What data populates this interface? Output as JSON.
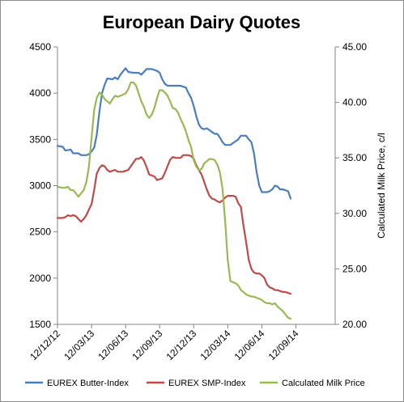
{
  "chart_data": {
    "type": "line",
    "title": "European Dairy Quotes",
    "xlabel": "",
    "ylabel": "",
    "y2label": "Calculated Milk Price, c/l",
    "x_tick_labels": [
      "12/12/12",
      "12/03/13",
      "12/06/13",
      "12/09/13",
      "12/12/13",
      "12/03/14",
      "12/06/14",
      "12/09/14"
    ],
    "x_range": [
      0,
      106
    ],
    "x_tick_positions": [
      0,
      13,
      26,
      39,
      52,
      65,
      78,
      91
    ],
    "ylim": [
      1500,
      4500
    ],
    "y_ticks": [
      1500,
      2000,
      2500,
      3000,
      3500,
      4000,
      4500
    ],
    "y_tick_labels": [
      "1500",
      "2000",
      "2500",
      "3000",
      "3500",
      "4000",
      "4500"
    ],
    "y2lim": [
      20,
      45
    ],
    "y2_ticks": [
      20,
      25,
      30,
      35,
      40,
      45
    ],
    "y2_tick_labels": [
      "20.00",
      "25.00",
      "30.00",
      "35.00",
      "40.00",
      "45.00"
    ],
    "grid": false,
    "legend_position": "bottom",
    "series": [
      {
        "name": "EUREX Butter-Index",
        "axis": "left",
        "color": "#4a7ebb",
        "points": [
          [
            0,
            3430
          ],
          [
            2,
            3420
          ],
          [
            3,
            3380
          ],
          [
            5,
            3390
          ],
          [
            6,
            3350
          ],
          [
            8,
            3350
          ],
          [
            9,
            3330
          ],
          [
            11,
            3330
          ],
          [
            12,
            3340
          ],
          [
            13,
            3370
          ],
          [
            14,
            3410
          ],
          [
            15,
            3550
          ],
          [
            16,
            3800
          ],
          [
            17,
            4000
          ],
          [
            18,
            4090
          ],
          [
            19,
            4160
          ],
          [
            21,
            4150
          ],
          [
            22,
            4170
          ],
          [
            23,
            4150
          ],
          [
            24,
            4200
          ],
          [
            26,
            4270
          ],
          [
            27,
            4230
          ],
          [
            29,
            4220
          ],
          [
            31,
            4220
          ],
          [
            32,
            4200
          ],
          [
            33,
            4230
          ],
          [
            34,
            4260
          ],
          [
            36,
            4260
          ],
          [
            38,
            4240
          ],
          [
            39,
            4220
          ],
          [
            40,
            4150
          ],
          [
            41,
            4100
          ],
          [
            42,
            4080
          ],
          [
            44,
            4080
          ],
          [
            47,
            4080
          ],
          [
            48,
            4070
          ],
          [
            49,
            4060
          ],
          [
            50,
            4000
          ],
          [
            51,
            3950
          ],
          [
            52,
            3860
          ],
          [
            53,
            3750
          ],
          [
            54,
            3660
          ],
          [
            55,
            3620
          ],
          [
            56,
            3610
          ],
          [
            57,
            3620
          ],
          [
            58,
            3600
          ],
          [
            59,
            3580
          ],
          [
            60,
            3560
          ],
          [
            61,
            3560
          ],
          [
            62,
            3520
          ],
          [
            63,
            3470
          ],
          [
            64,
            3440
          ],
          [
            66,
            3440
          ],
          [
            67,
            3460
          ],
          [
            68,
            3480
          ],
          [
            69,
            3500
          ],
          [
            70,
            3540
          ],
          [
            72,
            3540
          ],
          [
            73,
            3500
          ],
          [
            74,
            3470
          ],
          [
            75,
            3350
          ],
          [
            76,
            3150
          ],
          [
            77,
            3000
          ],
          [
            78,
            2930
          ],
          [
            80,
            2930
          ],
          [
            81,
            2940
          ],
          [
            82,
            2960
          ],
          [
            83,
            3000
          ],
          [
            84,
            2990
          ],
          [
            85,
            2960
          ],
          [
            86,
            2960
          ],
          [
            87,
            2950
          ],
          [
            88,
            2940
          ],
          [
            89,
            2860
          ]
        ]
      },
      {
        "name": "EUREX SMP-Index",
        "axis": "left",
        "color": "#be4b48",
        "points": [
          [
            0,
            2650
          ],
          [
            2,
            2650
          ],
          [
            3,
            2660
          ],
          [
            4,
            2680
          ],
          [
            5,
            2670
          ],
          [
            6,
            2680
          ],
          [
            7,
            2670
          ],
          [
            8,
            2640
          ],
          [
            9,
            2610
          ],
          [
            10,
            2640
          ],
          [
            11,
            2680
          ],
          [
            12,
            2740
          ],
          [
            13,
            2800
          ],
          [
            14,
            2950
          ],
          [
            15,
            3130
          ],
          [
            16,
            3190
          ],
          [
            17,
            3220
          ],
          [
            18,
            3210
          ],
          [
            19,
            3170
          ],
          [
            20,
            3150
          ],
          [
            21,
            3160
          ],
          [
            22,
            3170
          ],
          [
            23,
            3150
          ],
          [
            25,
            3150
          ],
          [
            27,
            3170
          ],
          [
            28,
            3210
          ],
          [
            29,
            3250
          ],
          [
            30,
            3290
          ],
          [
            31,
            3290
          ],
          [
            32,
            3310
          ],
          [
            33,
            3270
          ],
          [
            34,
            3200
          ],
          [
            35,
            3120
          ],
          [
            37,
            3100
          ],
          [
            38,
            3060
          ],
          [
            40,
            3080
          ],
          [
            41,
            3140
          ],
          [
            42,
            3210
          ],
          [
            43,
            3280
          ],
          [
            44,
            3310
          ],
          [
            45,
            3300
          ],
          [
            47,
            3300
          ],
          [
            48,
            3330
          ],
          [
            50,
            3330
          ],
          [
            51,
            3320
          ],
          [
            52,
            3290
          ],
          [
            53,
            3220
          ],
          [
            54,
            3170
          ],
          [
            55,
            3120
          ],
          [
            56,
            3040
          ],
          [
            57,
            2960
          ],
          [
            58,
            2890
          ],
          [
            59,
            2860
          ],
          [
            60,
            2850
          ],
          [
            61,
            2830
          ],
          [
            62,
            2820
          ],
          [
            63,
            2840
          ],
          [
            64,
            2870
          ],
          [
            65,
            2890
          ],
          [
            67,
            2890
          ],
          [
            68,
            2880
          ],
          [
            69,
            2810
          ],
          [
            70,
            2770
          ],
          [
            71,
            2570
          ],
          [
            72,
            2390
          ],
          [
            73,
            2200
          ],
          [
            74,
            2100
          ],
          [
            75,
            2060
          ],
          [
            76,
            2050
          ],
          [
            77,
            2050
          ],
          [
            78,
            2030
          ],
          [
            79,
            2000
          ],
          [
            80,
            1930
          ],
          [
            81,
            1900
          ],
          [
            82,
            1890
          ],
          [
            83,
            1870
          ],
          [
            84,
            1870
          ],
          [
            85,
            1860
          ],
          [
            86,
            1850
          ],
          [
            87,
            1850
          ],
          [
            88,
            1840
          ],
          [
            89,
            1830
          ]
        ]
      },
      {
        "name": "Calculated Milk Price",
        "axis": "right",
        "color": "#98b954",
        "points": [
          [
            0,
            32.4
          ],
          [
            2,
            32.3
          ],
          [
            3,
            32.3
          ],
          [
            4,
            32.4
          ],
          [
            5,
            32.1
          ],
          [
            6,
            32.1
          ],
          [
            7,
            31.8
          ],
          [
            8,
            31.5
          ],
          [
            9,
            31.8
          ],
          [
            10,
            32.1
          ],
          [
            11,
            32.8
          ],
          [
            12,
            34.2
          ],
          [
            13,
            36.8
          ],
          [
            14,
            39.3
          ],
          [
            15,
            40.4
          ],
          [
            16,
            40.9
          ],
          [
            17,
            40.7
          ],
          [
            18,
            40.3
          ],
          [
            19,
            40.1
          ],
          [
            20,
            39.9
          ],
          [
            21,
            40.3
          ],
          [
            22,
            40.6
          ],
          [
            23,
            40.5
          ],
          [
            24,
            40.6
          ],
          [
            25,
            40.7
          ],
          [
            26,
            40.8
          ],
          [
            27,
            41.2
          ],
          [
            28,
            41.8
          ],
          [
            29,
            41.8
          ],
          [
            30,
            41.5
          ],
          [
            31,
            40.8
          ],
          [
            32,
            40.1
          ],
          [
            33,
            39.6
          ],
          [
            34,
            38.9
          ],
          [
            35,
            38.6
          ],
          [
            36,
            38.9
          ],
          [
            37,
            39.5
          ],
          [
            38,
            40.4
          ],
          [
            39,
            41.1
          ],
          [
            40,
            41.1
          ],
          [
            41,
            40.9
          ],
          [
            42,
            40.6
          ],
          [
            43,
            40.1
          ],
          [
            44,
            39.5
          ],
          [
            45,
            39.4
          ],
          [
            46,
            39.1
          ],
          [
            47,
            38.5
          ],
          [
            48,
            38.0
          ],
          [
            49,
            37.4
          ],
          [
            50,
            36.6
          ],
          [
            51,
            36.0
          ],
          [
            52,
            34.8
          ],
          [
            53,
            34.2
          ],
          [
            54,
            33.9
          ],
          [
            55,
            34.0
          ],
          [
            56,
            34.5
          ],
          [
            57,
            34.7
          ],
          [
            58,
            34.9
          ],
          [
            59,
            34.9
          ],
          [
            60,
            34.8
          ],
          [
            61,
            34.4
          ],
          [
            62,
            33.7
          ],
          [
            63,
            32.2
          ],
          [
            64,
            29.3
          ],
          [
            65,
            25.8
          ],
          [
            66,
            23.9
          ],
          [
            67,
            23.8
          ],
          [
            68,
            23.7
          ],
          [
            69,
            23.5
          ],
          [
            70,
            23.1
          ],
          [
            71,
            22.9
          ],
          [
            72,
            22.7
          ],
          [
            73,
            22.6
          ],
          [
            74,
            22.5
          ],
          [
            75,
            22.5
          ],
          [
            76,
            22.4
          ],
          [
            77,
            22.3
          ],
          [
            78,
            22.2
          ],
          [
            79,
            22.0
          ],
          [
            80,
            21.9
          ],
          [
            81,
            21.9
          ],
          [
            82,
            21.8
          ],
          [
            83,
            21.9
          ],
          [
            84,
            21.6
          ],
          [
            85,
            21.4
          ],
          [
            86,
            21.2
          ],
          [
            87,
            20.9
          ],
          [
            88,
            20.6
          ],
          [
            89,
            20.5
          ]
        ]
      }
    ]
  }
}
